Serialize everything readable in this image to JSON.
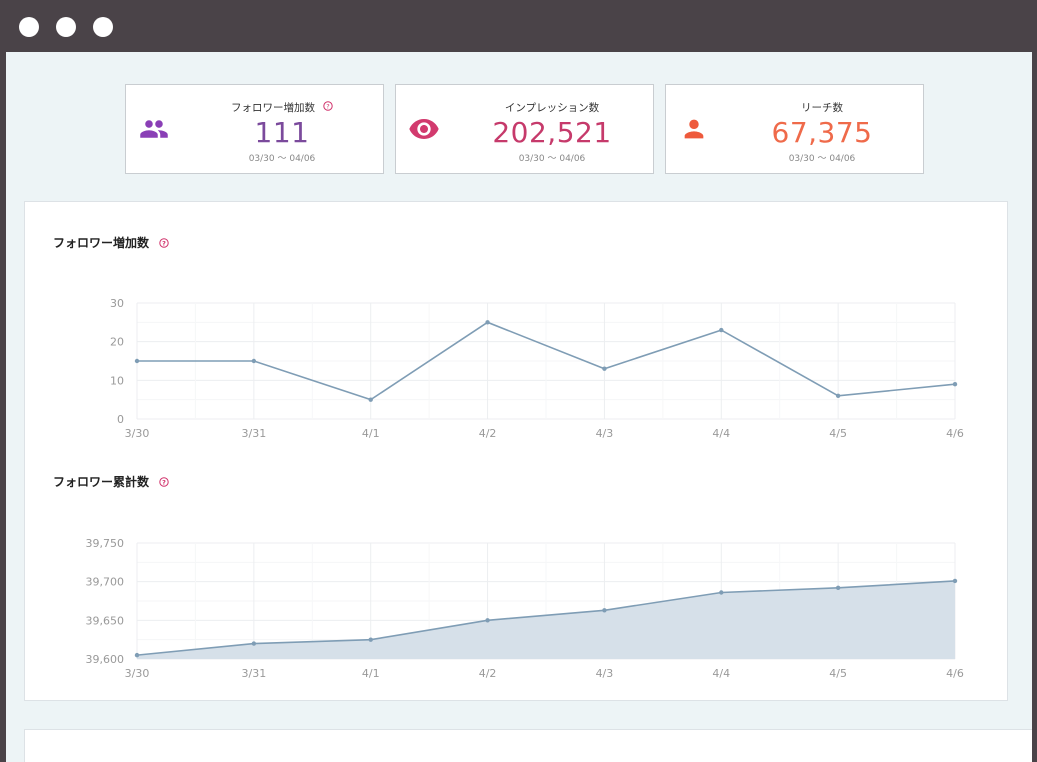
{
  "window": {
    "dots": 3
  },
  "stats": [
    {
      "label": "フォロワー増加数",
      "value": "111",
      "range": "03/30 〜 04/06",
      "icon": "people-icon",
      "icon_bg": "#e5d2f0",
      "icon_color": "#8a3fb6",
      "value_color": "#7b4a9c",
      "help": true
    },
    {
      "label": "インプレッション数",
      "value": "202,521",
      "range": "03/30 〜 04/06",
      "icon": "eye-icon",
      "icon_bg": "#f6d5df",
      "icon_color": "#d23a6e",
      "value_color": "#c63a6b",
      "help": false
    },
    {
      "label": "リーチ数",
      "value": "67,375",
      "range": "03/30 〜 04/06",
      "icon": "person-icon",
      "icon_bg": "#f7d3cb",
      "icon_color": "#ee5a3c",
      "value_color": "#ef6a4a",
      "help": false
    }
  ],
  "charts": {
    "follower_gain": {
      "title": "フォロワー増加数"
    },
    "follower_total": {
      "title": "フォロワー累計数"
    }
  },
  "chart_data": [
    {
      "type": "line",
      "title": "フォロワー増加数",
      "categories": [
        "3/30",
        "3/31",
        "4/1",
        "4/2",
        "4/3",
        "4/4",
        "4/5",
        "4/6"
      ],
      "values": [
        15,
        15,
        5,
        25,
        13,
        23,
        6,
        9
      ],
      "ylim": [
        0,
        30
      ],
      "yticks": [
        "0",
        "10",
        "20",
        "30"
      ],
      "grid": true,
      "color": "#7f9db5"
    },
    {
      "type": "area",
      "title": "フォロワー累計数",
      "categories": [
        "3/30",
        "3/31",
        "4/1",
        "4/2",
        "4/3",
        "4/4",
        "4/5",
        "4/6"
      ],
      "values": [
        39605,
        39620,
        39625,
        39650,
        39663,
        39686,
        39692,
        39701
      ],
      "ylim": [
        39600,
        39750
      ],
      "yticks": [
        "39,600",
        "39,650",
        "39,700",
        "39,750"
      ],
      "grid": true,
      "color": "#7f9db5",
      "fill": "#d6e0e9"
    }
  ]
}
